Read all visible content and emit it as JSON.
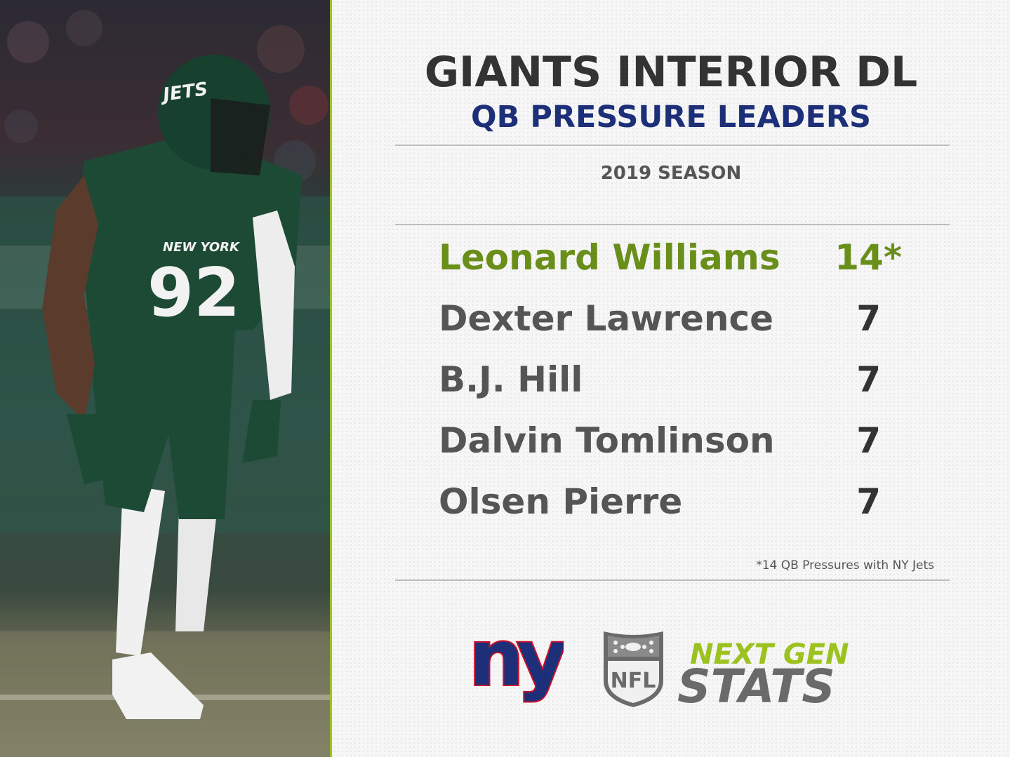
{
  "header": {
    "title": "GIANTS INTERIOR DL",
    "subtitle": "QB PRESSURE LEADERS",
    "season": "2019 SEASON"
  },
  "leaders": [
    {
      "name": "Leonard Williams",
      "value": "14*",
      "highlight": true
    },
    {
      "name": "Dexter Lawrence",
      "value": "7",
      "highlight": false
    },
    {
      "name": "B.J. Hill",
      "value": "7",
      "highlight": false
    },
    {
      "name": "Dalvin Tomlinson",
      "value": "7",
      "highlight": false
    },
    {
      "name": "Olsen Pierre",
      "value": "7",
      "highlight": false
    }
  ],
  "footnote": "*14 QB Pressures with NY Jets",
  "photo": {
    "jersey_team": "NEW YORK",
    "jersey_number": "92",
    "helmet_text": "JETS"
  },
  "logos": {
    "team_logo": "ny",
    "league_logo": "NFL",
    "brand_line1": "NEXT GEN",
    "brand_line2": "STATS"
  },
  "colors": {
    "highlight": "#6a8e1a",
    "giants_blue": "#1d2f78",
    "giants_red": "#c8102e",
    "jets_green": "#1c4a35",
    "ngs_green": "#9cc21f",
    "divider": "#9cc21f"
  }
}
